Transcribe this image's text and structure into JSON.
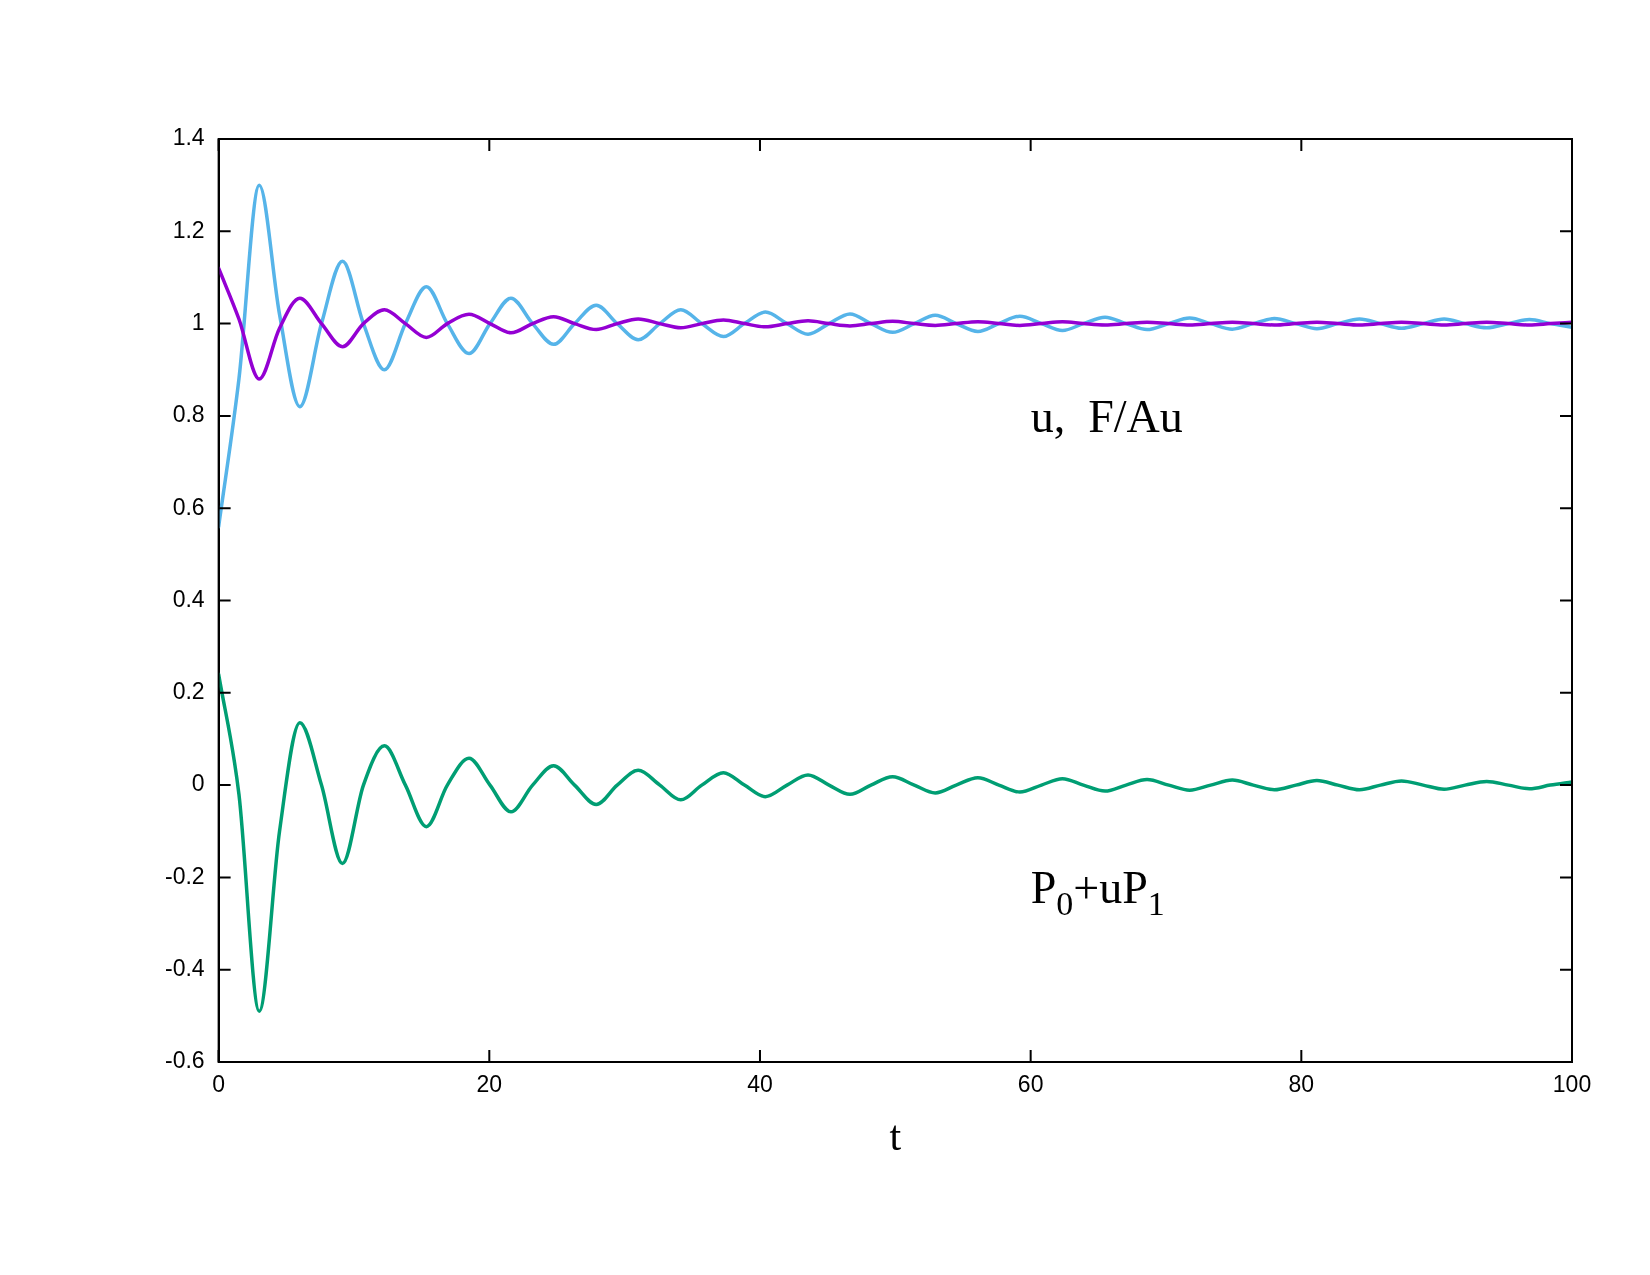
{
  "chart_data": {
    "type": "line",
    "xlabel": "t",
    "x": [
      0,
      1.5,
      3,
      4.5,
      6,
      7.6,
      9.15,
      10.7,
      12.25,
      13.8,
      15.35,
      16.9,
      18.5,
      20.05,
      21.6,
      23.2,
      24.75,
      26.3,
      27.9,
      29.45,
      31,
      32.6,
      34.15,
      35.7,
      37.3,
      38.85,
      40.4,
      42,
      43.55,
      45.1,
      46.65,
      48.2,
      49.8,
      51.4,
      52.95,
      54.5,
      56.1,
      57.65,
      59.2,
      60.8,
      62.35,
      63.9,
      65.5,
      67.05,
      68.6,
      70.2,
      71.75,
      73.3,
      74.9,
      76.45,
      78,
      79.6,
      81.15,
      82.7,
      84.3,
      85.85,
      87.4,
      89,
      90.55,
      92.1,
      93.7,
      95.3,
      96.85,
      98.4,
      100
    ],
    "series": [
      {
        "color": "#9400d3",
        "values": [
          1.12,
          1.01,
          0.88,
          0.99,
          1.055,
          1,
          0.95,
          1,
          1.03,
          1,
          0.97,
          1,
          1.02,
          1,
          0.98,
          1,
          1.015,
          1,
          0.987,
          1,
          1.01,
          1,
          0.991,
          1,
          1.008,
          1,
          0.993,
          1,
          1.006,
          1,
          0.995,
          1,
          1.005,
          1,
          0.996,
          1,
          1.004,
          1,
          0.996,
          1,
          1.004,
          1,
          0.997,
          1,
          1.003,
          1,
          0.997,
          1,
          1.003,
          1,
          0.997,
          1,
          1.003,
          1,
          0.997,
          1,
          1.003,
          1,
          0.997,
          1,
          1.003,
          1,
          0.997,
          1,
          1.003
        ]
      },
      {
        "color": "#56b4e9",
        "values": [
          0.56,
          0.88,
          1.3,
          1.02,
          0.82,
          1,
          1.135,
          1,
          0.9,
          1,
          1.08,
          1,
          0.935,
          1,
          1.055,
          1,
          0.955,
          1,
          1.04,
          1,
          0.965,
          1,
          1.03,
          1,
          0.972,
          1,
          1.025,
          1,
          0.977,
          1,
          1.021,
          1,
          0.981,
          1,
          1.018,
          1,
          0.983,
          1,
          1.016,
          1,
          0.985,
          1,
          1.014,
          1,
          0.987,
          1,
          1.012,
          1,
          0.988,
          1,
          1.011,
          1,
          0.989,
          1,
          1.01,
          1,
          0.99,
          1,
          1.01,
          1,
          0.991,
          1,
          1.009,
          1,
          0.992
        ]
      },
      {
        "color": "#009e73",
        "values": [
          0.24,
          -0.02,
          -0.49,
          -0.1,
          0.135,
          0,
          -0.17,
          0,
          0.085,
          0,
          -0.09,
          0,
          0.058,
          0,
          -0.058,
          0,
          0.042,
          0,
          -0.042,
          0,
          0.032,
          0,
          -0.032,
          0,
          0.027,
          0,
          -0.025,
          0,
          0.022,
          0,
          -0.02,
          0,
          0.018,
          0,
          -0.017,
          0,
          0.016,
          0,
          -0.015,
          0,
          0.014,
          0,
          -0.013,
          0,
          0.012,
          0,
          -0.011,
          0,
          0.011,
          0,
          -0.01,
          0,
          0.01,
          0,
          -0.01,
          0,
          0.009,
          0,
          -0.009,
          0,
          0.008,
          0,
          -0.008,
          0,
          0.007
        ]
      }
    ],
    "annotations": [
      "u,  F/Au",
      "P$_{0}$+uP$_{1}$"
    ],
    "xlim": [
      0,
      100
    ],
    "xticks": [
      0,
      20,
      40,
      60,
      80,
      100
    ],
    "ylim": [
      -0.6,
      1.4
    ],
    "yticks": [
      -0.6,
      -0.4,
      -0.2,
      0,
      0.2,
      0.4,
      0.6,
      0.8,
      1,
      1.2,
      1.4
    ],
    "grid": false,
    "legend": false,
    "marker": "none",
    "line_style": "solid"
  }
}
